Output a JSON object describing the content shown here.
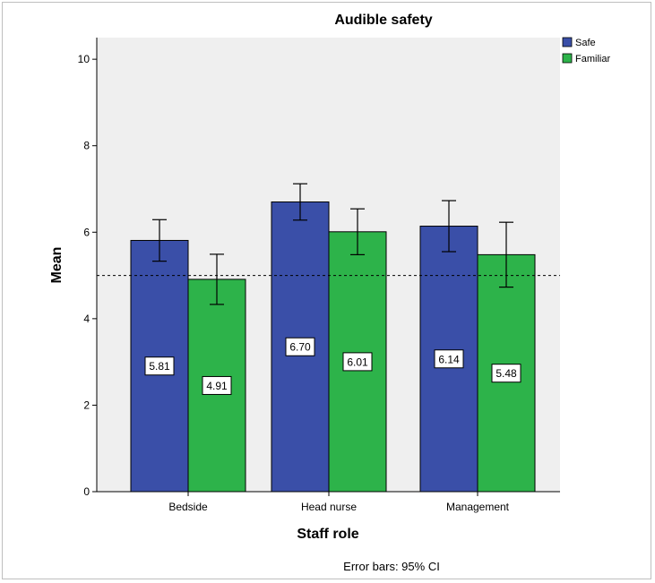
{
  "chart_data": {
    "type": "bar",
    "title": "Audible safety",
    "xlabel": "Staff role",
    "ylabel": "Mean",
    "categories": [
      "Bedside",
      "Head nurse",
      "Management"
    ],
    "ylim": [
      0,
      10.5
    ],
    "yticks": [
      "0",
      "2",
      "4",
      "6",
      "8",
      "10"
    ],
    "grid": false,
    "legend_position": "top-right",
    "reference_line": 5,
    "series": [
      {
        "name": "Safe",
        "color": "#3a4fa8",
        "values": [
          5.81,
          6.7,
          6.14
        ],
        "value_labels": [
          "5.81",
          "6.70",
          "6.14"
        ],
        "ci_low": [
          5.33,
          6.28,
          5.55
        ],
        "ci_high": [
          6.29,
          7.12,
          6.73
        ]
      },
      {
        "name": "Familiar",
        "color": "#2db34a",
        "values": [
          4.91,
          6.01,
          5.48
        ],
        "value_labels": [
          "4.91",
          "6.01",
          "5.48"
        ],
        "ci_low": [
          4.33,
          5.48,
          4.73
        ],
        "ci_high": [
          5.49,
          6.54,
          6.23
        ]
      }
    ],
    "footnote": "Error bars: 95% CI"
  }
}
